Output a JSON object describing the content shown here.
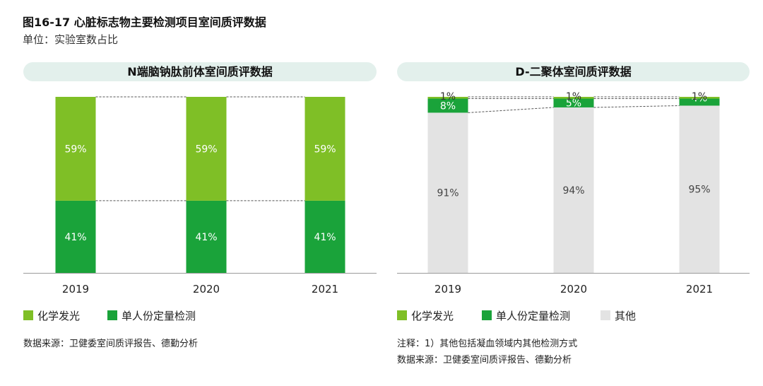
{
  "title": "图16-17 心脏标志物主要检测项目室间质评数据",
  "subtitle": "单位：实验室数占比",
  "colors": {
    "化学发光": "#7fbf26",
    "单人份定量检测": "#1aa33a",
    "其他": "#e3e3e3",
    "panel_header_bg": "#e3f0ec"
  },
  "chart_data": [
    {
      "type": "bar",
      "stacked": true,
      "title": "N端脑钠肽前体室间质评数据",
      "categories": [
        "2019",
        "2020",
        "2021"
      ],
      "ylim": [
        0,
        100
      ],
      "series": [
        {
          "name": "单人份定量检测",
          "values": [
            41,
            41,
            41
          ],
          "labels": [
            "41%",
            "41%",
            "41%"
          ]
        },
        {
          "name": "化学发光",
          "values": [
            59,
            59,
            59
          ],
          "labels": [
            "59%",
            "59%",
            "59%"
          ]
        }
      ],
      "legend": [
        "化学发光",
        "单人份定量检测"
      ]
    },
    {
      "type": "bar",
      "stacked": true,
      "title": "D-二聚体室间质评数据",
      "categories": [
        "2019",
        "2020",
        "2021"
      ],
      "ylim": [
        0,
        100
      ],
      "series": [
        {
          "name": "其他",
          "values": [
            91,
            94,
            95
          ],
          "labels": [
            "91%",
            "94%",
            "95%"
          ]
        },
        {
          "name": "单人份定量检测",
          "values": [
            8,
            5,
            4
          ],
          "labels": [
            "8%",
            "5%",
            "4%"
          ]
        },
        {
          "name": "化学发光",
          "values": [
            1,
            1,
            1
          ],
          "labels": [
            "1%",
            "1%",
            "1%"
          ]
        }
      ],
      "legend": [
        "化学发光",
        "单人份定量检测",
        "其他"
      ]
    }
  ],
  "left_source": "数据来源：卫健委室间质评报告、德勤分析",
  "right_note": "注释：1）其他包括凝血领域内其他检测方式",
  "right_source": "数据来源：卫健委室间质评报告、德勤分析"
}
